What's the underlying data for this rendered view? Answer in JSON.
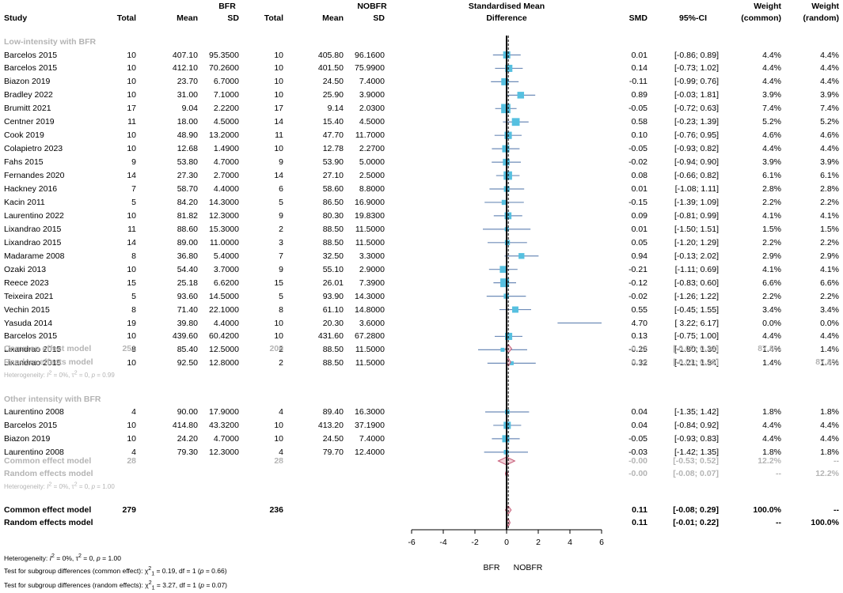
{
  "header": {
    "study": "Study",
    "group_bfr": "BFR",
    "group_nobfr": "NOBFR",
    "total": "Total",
    "mean": "Mean",
    "sd": "SD",
    "smd_title_1": "Standardised Mean",
    "smd_title_2": "Difference",
    "smd": "SMD",
    "ci": "95%-CI",
    "weight": "Weight",
    "weight_common": "(common)",
    "weight_random": "(random)"
  },
  "colors": {
    "square": "#56c0e0",
    "ci_line": "#6e8cb8",
    "diamond": "#c65c78",
    "diamond_fill": "#f0d2d8",
    "gray_text": "#b4b4b4"
  },
  "subgroups": [
    {
      "label": "Low-intensity with BFR",
      "studies": [
        {
          "study": "Barcelos 2015",
          "n1": "10",
          "m1": "407.10",
          "sd1": "95.3500",
          "n2": "10",
          "m2": "405.80",
          "sd2": "96.1600",
          "smd": "0.01",
          "ci": "[-0.86; 0.89]",
          "wc": "4.4%",
          "wr": "4.4%"
        },
        {
          "study": "Barcelos 2015",
          "n1": "10",
          "m1": "412.10",
          "sd1": "70.2600",
          "n2": "10",
          "m2": "401.50",
          "sd2": "75.9900",
          "smd": "0.14",
          "ci": "[-0.73; 1.02]",
          "wc": "4.4%",
          "wr": "4.4%"
        },
        {
          "study": "Biazon 2019",
          "n1": "10",
          "m1": "23.70",
          "sd1": "6.7000",
          "n2": "10",
          "m2": "24.50",
          "sd2": "7.4000",
          "smd": "-0.11",
          "ci": "[-0.99; 0.76]",
          "wc": "4.4%",
          "wr": "4.4%"
        },
        {
          "study": "Bradley 2022",
          "n1": "10",
          "m1": "31.00",
          "sd1": "7.1000",
          "n2": "10",
          "m2": "25.90",
          "sd2": "3.9000",
          "smd": "0.89",
          "ci": "[-0.03; 1.81]",
          "wc": "3.9%",
          "wr": "3.9%"
        },
        {
          "study": "Brumitt 2021",
          "n1": "17",
          "m1": "9.04",
          "sd1": "2.2200",
          "n2": "17",
          "m2": "9.14",
          "sd2": "2.0300",
          "smd": "-0.05",
          "ci": "[-0.72; 0.63]",
          "wc": "7.4%",
          "wr": "7.4%"
        },
        {
          "study": "Centner 2019",
          "n1": "11",
          "m1": "18.00",
          "sd1": "4.5000",
          "n2": "14",
          "m2": "15.40",
          "sd2": "4.5000",
          "smd": "0.58",
          "ci": "[-0.23; 1.39]",
          "wc": "5.2%",
          "wr": "5.2%"
        },
        {
          "study": "Cook 2019",
          "n1": "10",
          "m1": "48.90",
          "sd1": "13.2000",
          "n2": "11",
          "m2": "47.70",
          "sd2": "11.7000",
          "smd": "0.10",
          "ci": "[-0.76; 0.95]",
          "wc": "4.6%",
          "wr": "4.6%"
        },
        {
          "study": "Colapietro 2023",
          "n1": "10",
          "m1": "12.68",
          "sd1": "1.4900",
          "n2": "10",
          "m2": "12.78",
          "sd2": "2.2700",
          "smd": "-0.05",
          "ci": "[-0.93; 0.82]",
          "wc": "4.4%",
          "wr": "4.4%"
        },
        {
          "study": "Fahs 2015",
          "n1": "9",
          "m1": "53.80",
          "sd1": "4.7000",
          "n2": "9",
          "m2": "53.90",
          "sd2": "5.0000",
          "smd": "-0.02",
          "ci": "[-0.94; 0.90]",
          "wc": "3.9%",
          "wr": "3.9%"
        },
        {
          "study": "Fernandes 2020",
          "n1": "14",
          "m1": "27.30",
          "sd1": "2.7000",
          "n2": "14",
          "m2": "27.10",
          "sd2": "2.5000",
          "smd": "0.08",
          "ci": "[-0.66; 0.82]",
          "wc": "6.1%",
          "wr": "6.1%"
        },
        {
          "study": "Hackney 2016",
          "n1": "7",
          "m1": "58.70",
          "sd1": "4.4000",
          "n2": "6",
          "m2": "58.60",
          "sd2": "8.8000",
          "smd": "0.01",
          "ci": "[-1.08; 1.11]",
          "wc": "2.8%",
          "wr": "2.8%"
        },
        {
          "study": "Kacin 2011",
          "n1": "5",
          "m1": "84.20",
          "sd1": "14.3000",
          "n2": "5",
          "m2": "86.50",
          "sd2": "16.9000",
          "smd": "-0.15",
          "ci": "[-1.39; 1.09]",
          "wc": "2.2%",
          "wr": "2.2%"
        },
        {
          "study": "Laurentino 2022",
          "n1": "10",
          "m1": "81.82",
          "sd1": "12.3000",
          "n2": "9",
          "m2": "80.30",
          "sd2": "19.8300",
          "smd": "0.09",
          "ci": "[-0.81; 0.99]",
          "wc": "4.1%",
          "wr": "4.1%"
        },
        {
          "study": "Lixandrao 2015",
          "n1": "11",
          "m1": "88.60",
          "sd1": "15.3000",
          "n2": "2",
          "m2": "88.50",
          "sd2": "11.5000",
          "smd": "0.01",
          "ci": "[-1.50; 1.51]",
          "wc": "1.5%",
          "wr": "1.5%"
        },
        {
          "study": "Lixandrao 2015",
          "n1": "14",
          "m1": "89.00",
          "sd1": "11.0000",
          "n2": "3",
          "m2": "88.50",
          "sd2": "11.5000",
          "smd": "0.05",
          "ci": "[-1.20; 1.29]",
          "wc": "2.2%",
          "wr": "2.2%"
        },
        {
          "study": "Madarame 2008",
          "n1": "8",
          "m1": "36.80",
          "sd1": "5.4000",
          "n2": "7",
          "m2": "32.50",
          "sd2": "3.3000",
          "smd": "0.94",
          "ci": "[-0.13; 2.02]",
          "wc": "2.9%",
          "wr": "2.9%"
        },
        {
          "study": "Ozaki 2013",
          "n1": "10",
          "m1": "54.40",
          "sd1": "3.7000",
          "n2": "9",
          "m2": "55.10",
          "sd2": "2.9000",
          "smd": "-0.21",
          "ci": "[-1.11; 0.69]",
          "wc": "4.1%",
          "wr": "4.1%"
        },
        {
          "study": "Reece 2023",
          "n1": "15",
          "m1": "25.18",
          "sd1": "6.6200",
          "n2": "15",
          "m2": "26.01",
          "sd2": "7.3900",
          "smd": "-0.12",
          "ci": "[-0.83; 0.60]",
          "wc": "6.6%",
          "wr": "6.6%"
        },
        {
          "study": "Teixeira 2021",
          "n1": "5",
          "m1": "93.60",
          "sd1": "14.5000",
          "n2": "5",
          "m2": "93.90",
          "sd2": "14.3000",
          "smd": "-0.02",
          "ci": "[-1.26; 1.22]",
          "wc": "2.2%",
          "wr": "2.2%"
        },
        {
          "study": "Vechin 2015",
          "n1": "8",
          "m1": "71.40",
          "sd1": "22.1000",
          "n2": "8",
          "m2": "61.10",
          "sd2": "14.8000",
          "smd": "0.55",
          "ci": "[-0.45; 1.55]",
          "wc": "3.4%",
          "wr": "3.4%"
        },
        {
          "study": "Yasuda 2014",
          "n1": "19",
          "m1": "39.80",
          "sd1": "4.4000",
          "n2": "10",
          "m2": "20.30",
          "sd2": "3.6000",
          "smd": "4.70",
          "ci": "[ 3.22; 6.17]",
          "wc": "0.0%",
          "wr": "0.0%"
        },
        {
          "study": "Barcelos 2015",
          "n1": "10",
          "m1": "439.60",
          "sd1": "60.4200",
          "n2": "10",
          "m2": "431.60",
          "sd2": "67.2800",
          "smd": "0.13",
          "ci": "[-0.75; 1.00]",
          "wc": "4.4%",
          "wr": "4.4%"
        },
        {
          "study": "Lixandrao 2015",
          "n1": "8",
          "m1": "85.40",
          "sd1": "12.5000",
          "n2": "2",
          "m2": "88.50",
          "sd2": "11.5000",
          "smd": "-0.25",
          "ci": "[-1.80; 1.30]",
          "wc": "1.4%",
          "wr": "1.4%"
        },
        {
          "study": "Lixandrao 2015",
          "n1": "10",
          "m1": "92.50",
          "sd1": "12.8000",
          "n2": "2",
          "m2": "88.50",
          "sd2": "11.5000",
          "smd": "0.32",
          "ci": "[-1.21; 1.84]",
          "wc": "1.4%",
          "wr": "1.4%"
        }
      ],
      "common": {
        "label": "Common effect model",
        "n1": "251",
        "n2": "208",
        "smd": "0.12",
        "ci": "[-0.07; 0.32]",
        "wc": "87.8%",
        "wr": "--"
      },
      "random": {
        "label": "Random effects model",
        "smd": "0.12",
        "ci": "[-0.01; 0.26]",
        "wc": "--",
        "wr": "87.8%"
      },
      "heterogeneity": {
        "prefix": "Heterogeneity: ",
        "i2": "I",
        "i2_rest": " = 0%, ",
        "tau": "τ",
        "tau_rest": " = 0, ",
        "p": "p",
        "p_rest": " = 0.99"
      }
    },
    {
      "label": "Other intensity with BFR",
      "studies": [
        {
          "study": "Laurentino 2008",
          "n1": "4",
          "m1": "90.00",
          "sd1": "17.9000",
          "n2": "4",
          "m2": "89.40",
          "sd2": "16.3000",
          "smd": "0.04",
          "ci": "[-1.35; 1.42]",
          "wc": "1.8%",
          "wr": "1.8%"
        },
        {
          "study": "Barcelos 2015",
          "n1": "10",
          "m1": "414.80",
          "sd1": "43.3200",
          "n2": "10",
          "m2": "413.20",
          "sd2": "37.1900",
          "smd": "0.04",
          "ci": "[-0.84; 0.92]",
          "wc": "4.4%",
          "wr": "4.4%"
        },
        {
          "study": "Biazon 2019",
          "n1": "10",
          "m1": "24.20",
          "sd1": "4.7000",
          "n2": "10",
          "m2": "24.50",
          "sd2": "7.4000",
          "smd": "-0.05",
          "ci": "[-0.93; 0.83]",
          "wc": "4.4%",
          "wr": "4.4%"
        },
        {
          "study": "Laurentino 2008",
          "n1": "4",
          "m1": "79.30",
          "sd1": "12.3000",
          "n2": "4",
          "m2": "79.70",
          "sd2": "12.4000",
          "smd": "-0.03",
          "ci": "[-1.42; 1.35]",
          "wc": "1.8%",
          "wr": "1.8%"
        }
      ],
      "common": {
        "label": "Common effect model",
        "n1": "28",
        "n2": "28",
        "smd": "-0.00",
        "ci": "[-0.53; 0.52]",
        "wc": "12.2%",
        "wr": "--"
      },
      "random": {
        "label": "Random effects model",
        "smd": "-0.00",
        "ci": "[-0.08; 0.07]",
        "wc": "--",
        "wr": "12.2%"
      },
      "heterogeneity": {
        "prefix": "Heterogeneity: ",
        "i2": "I",
        "i2_rest": " = 0%, ",
        "tau": "τ",
        "tau_rest": " = 0, ",
        "p": "p",
        "p_rest": " = 1.00"
      }
    }
  ],
  "overall": {
    "common": {
      "label": "Common effect model",
      "n1": "279",
      "n2": "236",
      "smd": "0.11",
      "ci": "[-0.08; 0.29]",
      "wc": "100.0%",
      "wr": "--"
    },
    "random": {
      "label": "Random effects model",
      "smd": "0.11",
      "ci": "[-0.01; 0.22]",
      "wc": "--",
      "wr": "100.0%"
    }
  },
  "footer": {
    "heterogeneity": {
      "prefix": "Heterogeneity: ",
      "i2": "I",
      "i2_rest": " = 0%, ",
      "tau": "τ",
      "tau_rest": " = 0, ",
      "p": "p",
      "p_rest": " = 1.00"
    },
    "test_common": {
      "prefix": "Test for subgroup differences (common effect): ",
      "chi": "χ",
      "chi_rest": " = 0.19, df = 1 (",
      "p": "p",
      "p_rest": " = 0.66)"
    },
    "test_random": {
      "prefix": "Test for subgroup differences (random effects): ",
      "chi": "χ",
      "chi_rest": " = 3.27, df = 1 (",
      "p": "p",
      "p_rest": " = 0.07)"
    }
  },
  "chart_data": {
    "type": "forest",
    "title": "Standardised Mean Difference",
    "xlabel_left": "BFR",
    "xlabel_right": "NOBFR",
    "xlim": [
      -6,
      6
    ],
    "xticks": [
      -6,
      -4,
      -2,
      0,
      2,
      4,
      6
    ],
    "reference_line": 0,
    "overall_effect": 0.11,
    "studies_low": [
      {
        "smd": 0.01,
        "lo": -0.86,
        "hi": 0.89,
        "w": 4.4
      },
      {
        "smd": 0.14,
        "lo": -0.73,
        "hi": 1.02,
        "w": 4.4
      },
      {
        "smd": -0.11,
        "lo": -0.99,
        "hi": 0.76,
        "w": 4.4
      },
      {
        "smd": 0.89,
        "lo": -0.03,
        "hi": 1.81,
        "w": 3.9
      },
      {
        "smd": -0.05,
        "lo": -0.72,
        "hi": 0.63,
        "w": 7.4
      },
      {
        "smd": 0.58,
        "lo": -0.23,
        "hi": 1.39,
        "w": 5.2
      },
      {
        "smd": 0.1,
        "lo": -0.76,
        "hi": 0.95,
        "w": 4.6
      },
      {
        "smd": -0.05,
        "lo": -0.93,
        "hi": 0.82,
        "w": 4.4
      },
      {
        "smd": -0.02,
        "lo": -0.94,
        "hi": 0.9,
        "w": 3.9
      },
      {
        "smd": 0.08,
        "lo": -0.66,
        "hi": 0.82,
        "w": 6.1
      },
      {
        "smd": 0.01,
        "lo": -1.08,
        "hi": 1.11,
        "w": 2.8
      },
      {
        "smd": -0.15,
        "lo": -1.39,
        "hi": 1.09,
        "w": 2.2
      },
      {
        "smd": 0.09,
        "lo": -0.81,
        "hi": 0.99,
        "w": 4.1
      },
      {
        "smd": 0.01,
        "lo": -1.5,
        "hi": 1.51,
        "w": 1.5
      },
      {
        "smd": 0.05,
        "lo": -1.2,
        "hi": 1.29,
        "w": 2.2
      },
      {
        "smd": 0.94,
        "lo": -0.13,
        "hi": 2.02,
        "w": 2.9
      },
      {
        "smd": -0.21,
        "lo": -1.11,
        "hi": 0.69,
        "w": 4.1
      },
      {
        "smd": -0.12,
        "lo": -0.83,
        "hi": 0.6,
        "w": 6.6
      },
      {
        "smd": -0.02,
        "lo": -1.26,
        "hi": 1.22,
        "w": 2.2
      },
      {
        "smd": 0.55,
        "lo": -0.45,
        "hi": 1.55,
        "w": 3.4
      },
      {
        "smd": 4.7,
        "lo": 3.22,
        "hi": 6.17,
        "w": 0.0
      },
      {
        "smd": 0.13,
        "lo": -0.75,
        "hi": 1.0,
        "w": 4.4
      },
      {
        "smd": -0.25,
        "lo": -1.8,
        "hi": 1.3,
        "w": 1.4
      },
      {
        "smd": 0.32,
        "lo": -1.21,
        "hi": 1.84,
        "w": 1.4
      }
    ],
    "studies_other": [
      {
        "smd": 0.04,
        "lo": -1.35,
        "hi": 1.42,
        "w": 1.8
      },
      {
        "smd": 0.04,
        "lo": -0.84,
        "hi": 0.92,
        "w": 4.4
      },
      {
        "smd": -0.05,
        "lo": -0.93,
        "hi": 0.83,
        "w": 4.4
      },
      {
        "smd": -0.03,
        "lo": -1.42,
        "hi": 1.35,
        "w": 1.8
      }
    ],
    "diamonds": [
      {
        "name": "low-common",
        "smd": 0.12,
        "lo": -0.07,
        "hi": 0.32,
        "style": "subgroup"
      },
      {
        "name": "low-random",
        "smd": 0.12,
        "lo": -0.01,
        "hi": 0.26,
        "style": "subgroup"
      },
      {
        "name": "other-common",
        "smd": -0.0,
        "lo": -0.53,
        "hi": 0.52,
        "style": "subgroup"
      },
      {
        "name": "other-random",
        "smd": -0.0,
        "lo": -0.08,
        "hi": 0.07,
        "style": "subgroup"
      },
      {
        "name": "overall-common",
        "smd": 0.11,
        "lo": -0.08,
        "hi": 0.29,
        "style": "overall"
      },
      {
        "name": "overall-random",
        "smd": 0.11,
        "lo": -0.01,
        "hi": 0.22,
        "style": "overall"
      }
    ]
  }
}
